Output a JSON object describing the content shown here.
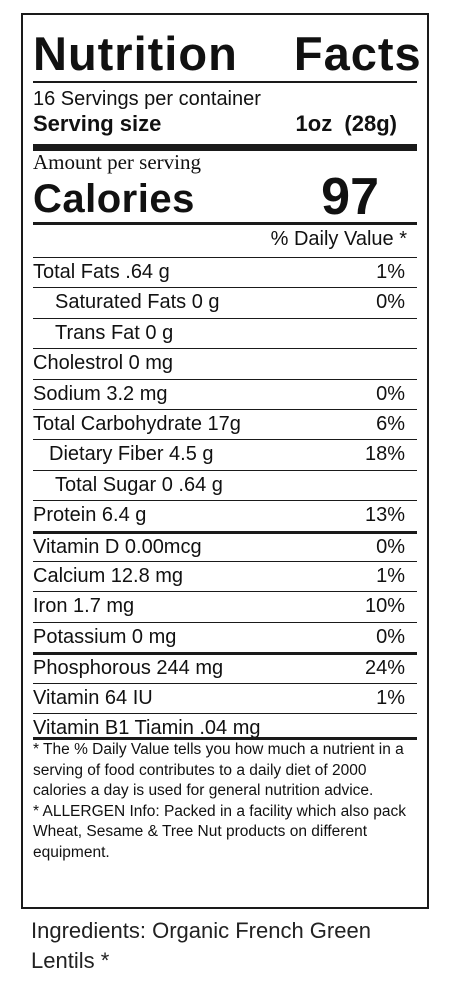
{
  "label": {
    "title": "Nutrition  Facts",
    "servings_per_container": "16 Servings per container",
    "serving_size_label": "Serving size",
    "serving_size_value": "1oz  (28g)",
    "amount_per_serving": "Amount per serving",
    "calories_label": "Calories",
    "calories_value": "97",
    "daily_value_header": "% Daily Value *",
    "rows": [
      {
        "name": "Total Fats .64 g",
        "dv": "1%"
      },
      {
        "name": "Saturated Fats 0 g",
        "dv": "0%"
      },
      {
        "name": "Trans Fat 0 g",
        "dv": ""
      },
      {
        "name": "Cholestrol 0 mg",
        "dv": ""
      },
      {
        "name": "Sodium 3.2 mg",
        "dv": "0%"
      },
      {
        "name": "Total Carbohydrate 17g",
        "dv": "6%"
      },
      {
        "name": "Dietary Fiber 4.5 g",
        "dv": "18%"
      },
      {
        "name": "Total Sugar 0 .64 g",
        "dv": ""
      },
      {
        "name": "Protein 6.4 g",
        "dv": "13%"
      },
      {
        "name": "Vitamin D 0.00mcg",
        "dv": "0%"
      },
      {
        "name": "Calcium 12.8 mg",
        "dv": "1%"
      },
      {
        "name": "Iron 1.7 mg",
        "dv": "10%"
      },
      {
        "name": "Potassium 0 mg",
        "dv": "0%"
      },
      {
        "name": "Phosphorous 244 mg",
        "dv": "24%"
      },
      {
        "name": "Vitamin 64 IU",
        "dv": "1%"
      },
      {
        "name": "Vitamin B1 Tiamin .04 mg",
        "dv": ""
      }
    ],
    "footnote_daily_value": "* The % Daily Value tells you how much a nutrient in a serving of food contributes to a daily diet of 2000 calories a day is used for general nutrition advice.",
    "footnote_allergen": "* ALLERGEN Info: Packed in a facility which also pack Wheat, Sesame & Tree Nut products on different equipment."
  },
  "ingredients": "Ingredients: Organic French Green Lentils *"
}
